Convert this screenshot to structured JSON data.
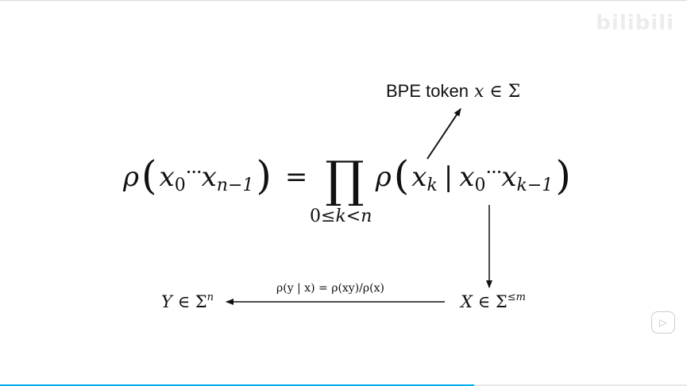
{
  "watermark": {
    "logo_text": "bilibili",
    "channel_text": "…"
  },
  "annotation": {
    "label": "BPE token",
    "var": "x",
    "in": "∈",
    "set": "Σ"
  },
  "equation": {
    "lhs_fn": "ρ",
    "open": "(",
    "x": "x",
    "sub0": "0",
    "dots": "···",
    "sub_n1": "n−1",
    "close": ")",
    "eq": "=",
    "prod": "∏",
    "rhs_fn": "ρ",
    "xk_sub": "k",
    "bar": "|",
    "sub_k1": "k−1",
    "limits": {
      "lo": "0≤",
      "k": "k",
      "lt": "<",
      "n": "n"
    }
  },
  "bottom": {
    "y_var": "Y",
    "y_in": "∈",
    "y_set": "Σ",
    "y_sup": "n",
    "x_var": "X",
    "x_in": "∈",
    "x_set": "Σ",
    "x_sup": "≤m",
    "condition": "ρ(y | x) = ρ(xy)/ρ(x)"
  },
  "player": {
    "play_icon": "play-icon",
    "progress": 0.69
  }
}
